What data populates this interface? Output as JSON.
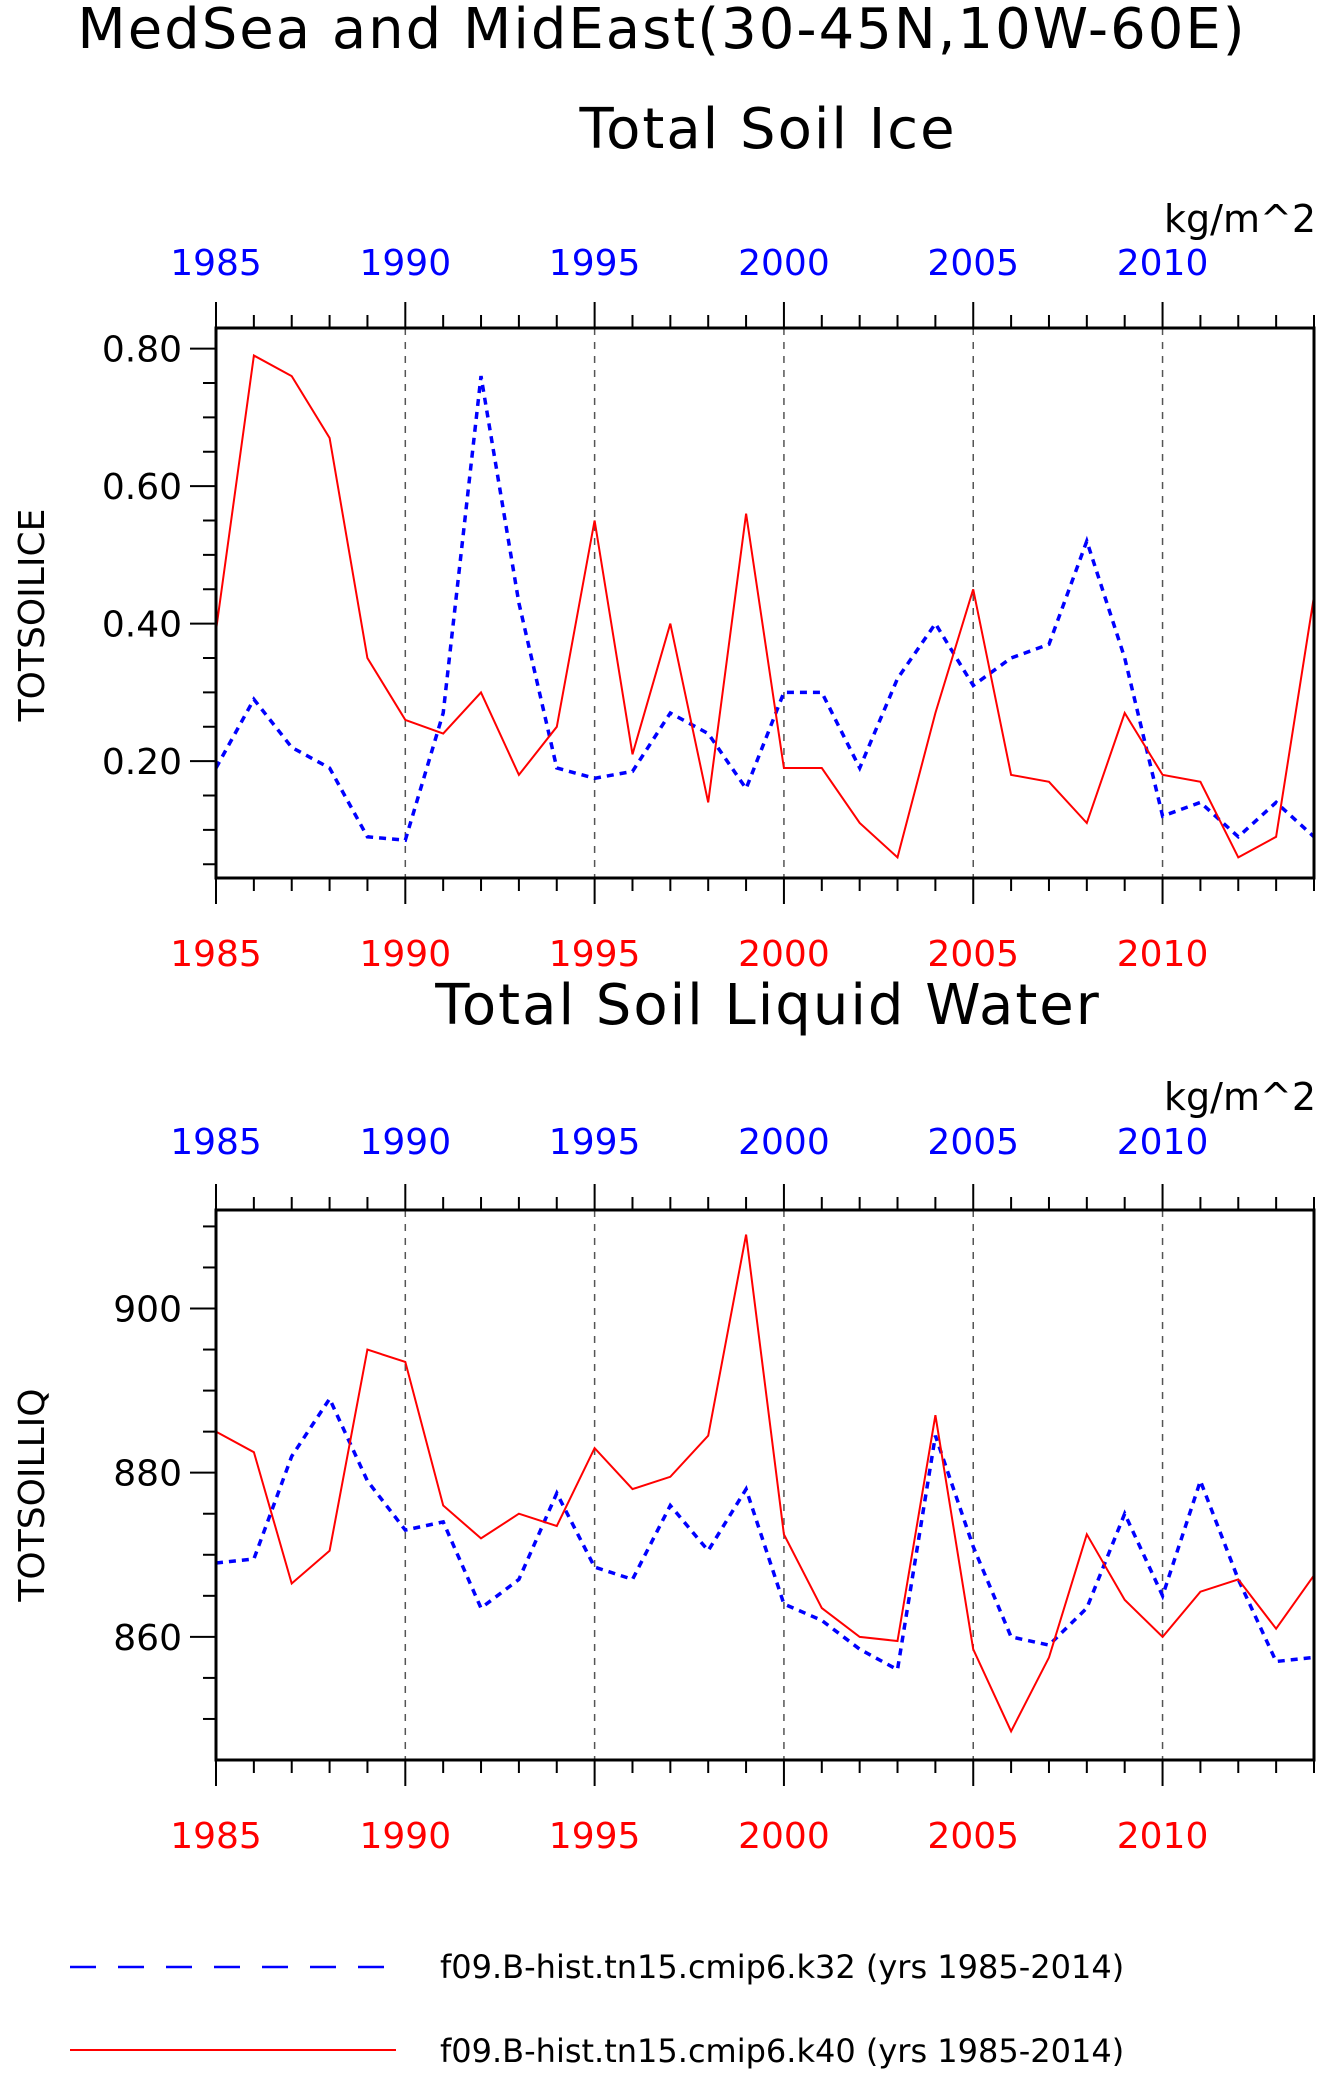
{
  "figure": {
    "title": "MedSea and MidEast(30-45N,10W-60E)",
    "legend": [
      {
        "label": "f09.B-hist.tn15.cmip6.k32 (yrs 1985-2014)",
        "color": "#0000ff",
        "style": "dashed"
      },
      {
        "label": "f09.B-hist.tn15.cmip6.k40 (yrs 1985-2014)",
        "color": "#ff0000",
        "style": "solid"
      }
    ]
  },
  "chart_data": [
    {
      "type": "line",
      "title": "Total Soil Ice",
      "units": "kg/m^2",
      "ylabel": "TOTSOILICE",
      "xlim": [
        1985,
        2014
      ],
      "ylim": [
        0.03,
        0.83
      ],
      "yticks": [
        0.2,
        0.4,
        0.6,
        0.8
      ],
      "ytick_labels": [
        "0.20",
        "0.40",
        "0.60",
        "0.80"
      ],
      "yminor_step": 0.05,
      "xticks": [
        1985,
        1990,
        1995,
        2000,
        2005,
        2010
      ],
      "x": [
        1985,
        1986,
        1987,
        1988,
        1989,
        1990,
        1991,
        1992,
        1993,
        1994,
        1995,
        1996,
        1997,
        1998,
        1999,
        2000,
        2001,
        2002,
        2003,
        2004,
        2005,
        2006,
        2007,
        2008,
        2009,
        2010,
        2011,
        2012,
        2013,
        2014
      ],
      "series": [
        {
          "name": "f09.B-hist.tn15.cmip6.k32",
          "color": "#0000ff",
          "style": "dashed",
          "xaxis": "top",
          "values": [
            0.19,
            0.29,
            0.22,
            0.19,
            0.09,
            0.085,
            0.27,
            0.76,
            0.43,
            0.19,
            0.175,
            0.185,
            0.27,
            0.24,
            0.16,
            0.3,
            0.3,
            0.19,
            0.32,
            0.4,
            0.31,
            0.35,
            0.37,
            0.52,
            0.35,
            0.12,
            0.14,
            0.09,
            0.14,
            0.09
          ]
        },
        {
          "name": "f09.B-hist.tn15.cmip6.k40",
          "color": "#ff0000",
          "style": "solid",
          "xaxis": "bottom",
          "values": [
            0.39,
            0.79,
            0.76,
            0.67,
            0.35,
            0.26,
            0.24,
            0.3,
            0.18,
            0.25,
            0.55,
            0.21,
            0.4,
            0.14,
            0.56,
            0.19,
            0.19,
            0.11,
            0.06,
            0.27,
            0.45,
            0.18,
            0.17,
            0.11,
            0.27,
            0.18,
            0.17,
            0.06,
            0.09,
            0.44
          ]
        }
      ]
    },
    {
      "type": "line",
      "title": "Total Soil Liquid Water",
      "units": "kg/m^2",
      "ylabel": "TOTSOILLIQ",
      "xlim": [
        1985,
        2014
      ],
      "ylim": [
        845,
        912
      ],
      "yticks": [
        860,
        880,
        900
      ],
      "ytick_labels": [
        "860",
        "880",
        "900"
      ],
      "yminor_step": 5,
      "xticks": [
        1985,
        1990,
        1995,
        2000,
        2005,
        2010
      ],
      "x": [
        1985,
        1986,
        1987,
        1988,
        1989,
        1990,
        1991,
        1992,
        1993,
        1994,
        1995,
        1996,
        1997,
        1998,
        1999,
        2000,
        2001,
        2002,
        2003,
        2004,
        2005,
        2006,
        2007,
        2008,
        2009,
        2010,
        2011,
        2012,
        2013,
        2014
      ],
      "series": [
        {
          "name": "f09.B-hist.tn15.cmip6.k32",
          "color": "#0000ff",
          "style": "dashed",
          "xaxis": "top",
          "values": [
            869,
            869.5,
            882,
            889,
            879,
            873,
            874,
            863.5,
            867,
            877.5,
            868.5,
            867,
            876,
            870.5,
            878,
            864,
            862,
            858.5,
            856,
            884.5,
            871,
            860,
            859,
            863.5,
            875,
            865,
            879,
            867,
            857,
            857.5
          ]
        },
        {
          "name": "f09.B-hist.tn15.cmip6.k40",
          "color": "#ff0000",
          "style": "solid",
          "xaxis": "bottom",
          "values": [
            885,
            882.5,
            866.5,
            870.5,
            895,
            893.5,
            876,
            872,
            875,
            873.5,
            883,
            878,
            879.5,
            884.5,
            909,
            872.5,
            863.5,
            860,
            859.5,
            887,
            858.5,
            848.5,
            857.5,
            872.5,
            864.5,
            860,
            865.5,
            867,
            861,
            867.5
          ]
        }
      ]
    }
  ]
}
